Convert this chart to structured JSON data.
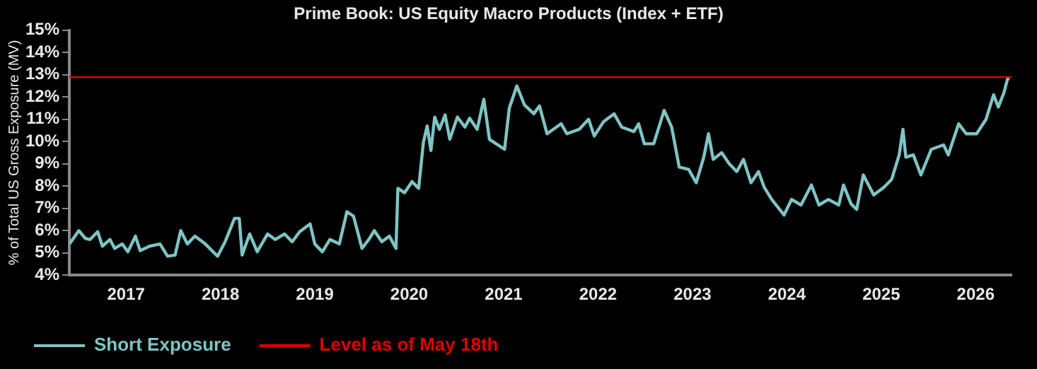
{
  "chart_data": {
    "type": "line",
    "title": "Prime Book: US Equity Macro Products (Index + ETF)",
    "ylabel": "% of Total US Gross Exposure (MV)",
    "x": [
      2016.4,
      2016.46,
      2016.5,
      2016.57,
      2016.62,
      2016.7,
      2016.75,
      2016.83,
      2016.88,
      2016.96,
      2017.02,
      2017.1,
      2017.15,
      2017.25,
      2017.36,
      2017.44,
      2017.52,
      2017.58,
      2017.65,
      2017.73,
      2017.84,
      2017.97,
      2018.05,
      2018.15,
      2018.2,
      2018.23,
      2018.31,
      2018.39,
      2018.5,
      2018.58,
      2018.68,
      2018.76,
      2018.84,
      2018.95,
      2019.0,
      2019.08,
      2019.16,
      2019.26,
      2019.34,
      2019.41,
      2019.5,
      2019.58,
      2019.63,
      2019.71,
      2019.79,
      2019.86,
      2019.88,
      2019.95,
      2020.03,
      2020.1,
      2020.15,
      2020.19,
      2020.23,
      2020.27,
      2020.32,
      2020.38,
      2020.43,
      2020.51,
      2020.59,
      2020.64,
      2020.72,
      2020.79,
      2020.85,
      2021.01,
      2021.06,
      2021.14,
      2021.22,
      2021.32,
      2021.38,
      2021.46,
      2021.61,
      2021.67,
      2021.8,
      2021.9,
      2021.96,
      2022.06,
      2022.17,
      2022.25,
      2022.38,
      2022.43,
      2022.49,
      2022.59,
      2022.7,
      2022.78,
      2022.86,
      2022.96,
      2023.04,
      2023.12,
      2023.17,
      2023.22,
      2023.31,
      2023.39,
      2023.47,
      2023.54,
      2023.62,
      2023.7,
      2023.76,
      2023.84,
      2023.97,
      2024.05,
      2024.15,
      2024.26,
      2024.34,
      2024.44,
      2024.55,
      2024.6,
      2024.68,
      2024.74,
      2024.81,
      2024.92,
      2025.03,
      2025.11,
      2025.19,
      2025.23,
      2025.26,
      2025.34,
      2025.42,
      2025.53,
      2025.66,
      2025.71,
      2025.82,
      2025.9,
      2026.01,
      2026.11,
      2026.19,
      2026.24,
      2026.3,
      2026.34,
      2026.36
    ],
    "series": [
      {
        "name": "Short Exposure",
        "color": "#7fc4c4",
        "values": [
          5.4,
          5.75,
          6.0,
          5.65,
          5.6,
          5.95,
          5.3,
          5.6,
          5.2,
          5.4,
          5.05,
          5.75,
          5.1,
          5.3,
          5.4,
          4.85,
          4.9,
          6.0,
          5.4,
          5.75,
          5.4,
          4.85,
          5.5,
          6.55,
          6.55,
          4.9,
          5.85,
          5.05,
          5.85,
          5.6,
          5.85,
          5.5,
          5.95,
          6.3,
          5.4,
          5.05,
          5.6,
          5.4,
          6.85,
          6.65,
          5.2,
          5.65,
          6.0,
          5.5,
          5.75,
          5.2,
          7.9,
          7.7,
          8.2,
          7.9,
          9.95,
          10.7,
          9.6,
          11.1,
          10.55,
          11.2,
          10.1,
          11.1,
          10.65,
          11.05,
          10.55,
          11.9,
          10.1,
          9.65,
          11.5,
          12.5,
          11.65,
          11.25,
          11.6,
          10.35,
          10.8,
          10.35,
          10.55,
          11.0,
          10.25,
          10.9,
          11.25,
          10.65,
          10.45,
          10.8,
          9.9,
          9.9,
          11.4,
          10.65,
          8.85,
          8.75,
          8.15,
          9.3,
          10.35,
          9.2,
          9.5,
          9.0,
          8.65,
          9.2,
          8.15,
          8.65,
          7.95,
          7.4,
          6.7,
          7.4,
          7.15,
          8.05,
          7.15,
          7.4,
          7.15,
          8.05,
          7.2,
          6.95,
          8.5,
          7.6,
          7.95,
          8.3,
          9.4,
          10.55,
          9.3,
          9.4,
          8.5,
          9.65,
          9.85,
          9.4,
          10.8,
          10.35,
          10.35,
          11.0,
          12.1,
          11.55,
          12.2,
          12.85,
          12.85
        ]
      }
    ],
    "xlim": [
      2016.4,
      2026.38
    ],
    "xticks": [
      2017,
      2018,
      2019,
      2020,
      2021,
      2022,
      2023,
      2024,
      2025,
      2026
    ],
    "ylim": [
      4,
      15
    ],
    "yticks": [
      {
        "value": 4,
        "label": "4%"
      },
      {
        "value": 5,
        "label": "5%"
      },
      {
        "value": 6,
        "label": "6%"
      },
      {
        "value": 7,
        "label": "7%"
      },
      {
        "value": 8,
        "label": "8%"
      },
      {
        "value": 9,
        "label": "9%"
      },
      {
        "value": 10,
        "label": "10%"
      },
      {
        "value": 11,
        "label": "11%"
      },
      {
        "value": 12,
        "label": "12%"
      },
      {
        "value": 13,
        "label": "13%"
      },
      {
        "value": 14,
        "label": "14%"
      },
      {
        "value": 15,
        "label": "15%"
      }
    ],
    "ref_lines": [
      {
        "axis": "y",
        "value": 12.9,
        "label": "Level as of May 18th",
        "color": "#e00000"
      }
    ],
    "grid": false,
    "legend": "bottom left",
    "marker": "none",
    "line_style": "solid"
  }
}
